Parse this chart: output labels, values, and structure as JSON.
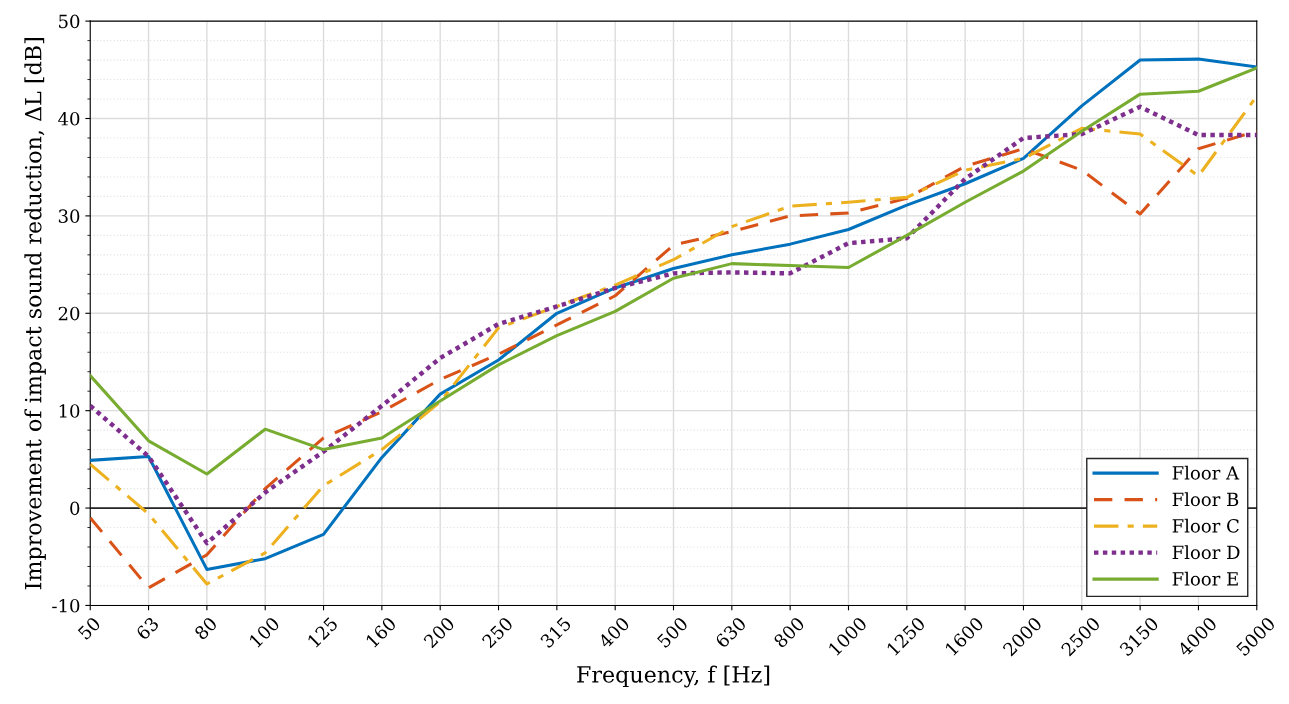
{
  "chart_data": {
    "type": "line",
    "xlabel": "Frequency, f [Hz]",
    "ylabel": "Improvement of impact sound reduction, ΔL [dB]",
    "categories": [
      "50",
      "63",
      "80",
      "100",
      "125",
      "160",
      "200",
      "250",
      "315",
      "400",
      "500",
      "630",
      "800",
      "1000",
      "1250",
      "1600",
      "2000",
      "2500",
      "3150",
      "4000",
      "5000"
    ],
    "series": [
      {
        "name": "Floor A",
        "color": "#0072bd",
        "line_style": "solid",
        "values": [
          4.9,
          5.3,
          -6.3,
          -5.2,
          -2.7,
          5.2,
          11.7,
          15.2,
          20,
          22.6,
          24.6,
          26,
          27.1,
          28.6,
          31.1,
          33.3,
          35.9,
          41.3,
          46,
          46.1,
          45.3
        ]
      },
      {
        "name": "Floor B",
        "color": "#d95319",
        "line_style": "dashed",
        "values": [
          -1,
          -8.2,
          -4.8,
          2,
          7.2,
          9.9,
          13.2,
          15.8,
          18.8,
          21.8,
          27,
          28.4,
          30,
          30.3,
          31.8,
          35.1,
          36.9,
          34.7,
          30.2,
          36.9,
          38.7
        ]
      },
      {
        "name": "Floor C",
        "color": "#edb120",
        "line_style": "dashdot",
        "values": [
          4.5,
          -0.6,
          -7.8,
          -4.6,
          2.3,
          6,
          10.9,
          18.5,
          20.7,
          22.9,
          25.5,
          28.9,
          31,
          31.4,
          31.9,
          34.7,
          35.9,
          39,
          38.4,
          34.1,
          42.3
        ]
      },
      {
        "name": "Floor D",
        "color": "#7e2f8e",
        "line_style": "dotted",
        "values": [
          10.5,
          5.3,
          -3.6,
          1.6,
          5.8,
          10.5,
          15.4,
          18.9,
          20.7,
          22.6,
          24.1,
          24.2,
          24.1,
          27.2,
          27.7,
          33.8,
          38,
          38.4,
          41.2,
          38.3,
          38.3
        ]
      },
      {
        "name": "Floor E",
        "color": "#77ac30",
        "line_style": "solid",
        "values": [
          13.6,
          6.9,
          3.5,
          8.1,
          6,
          7.2,
          11,
          14.7,
          17.7,
          20.2,
          23.6,
          25.1,
          24.9,
          24.7,
          28,
          31.4,
          34.6,
          38.7,
          42.5,
          42.8,
          45.2
        ]
      }
    ],
    "ylim": [
      -10,
      50
    ],
    "yticks": [
      -10,
      0,
      10,
      20,
      30,
      40,
      50
    ],
    "ref_lines": [
      {
        "axis": "y",
        "value": 0,
        "color": "#262626",
        "line_style": "solid"
      }
    ],
    "grid": true,
    "legend": "bottom right",
    "marker": "none"
  }
}
